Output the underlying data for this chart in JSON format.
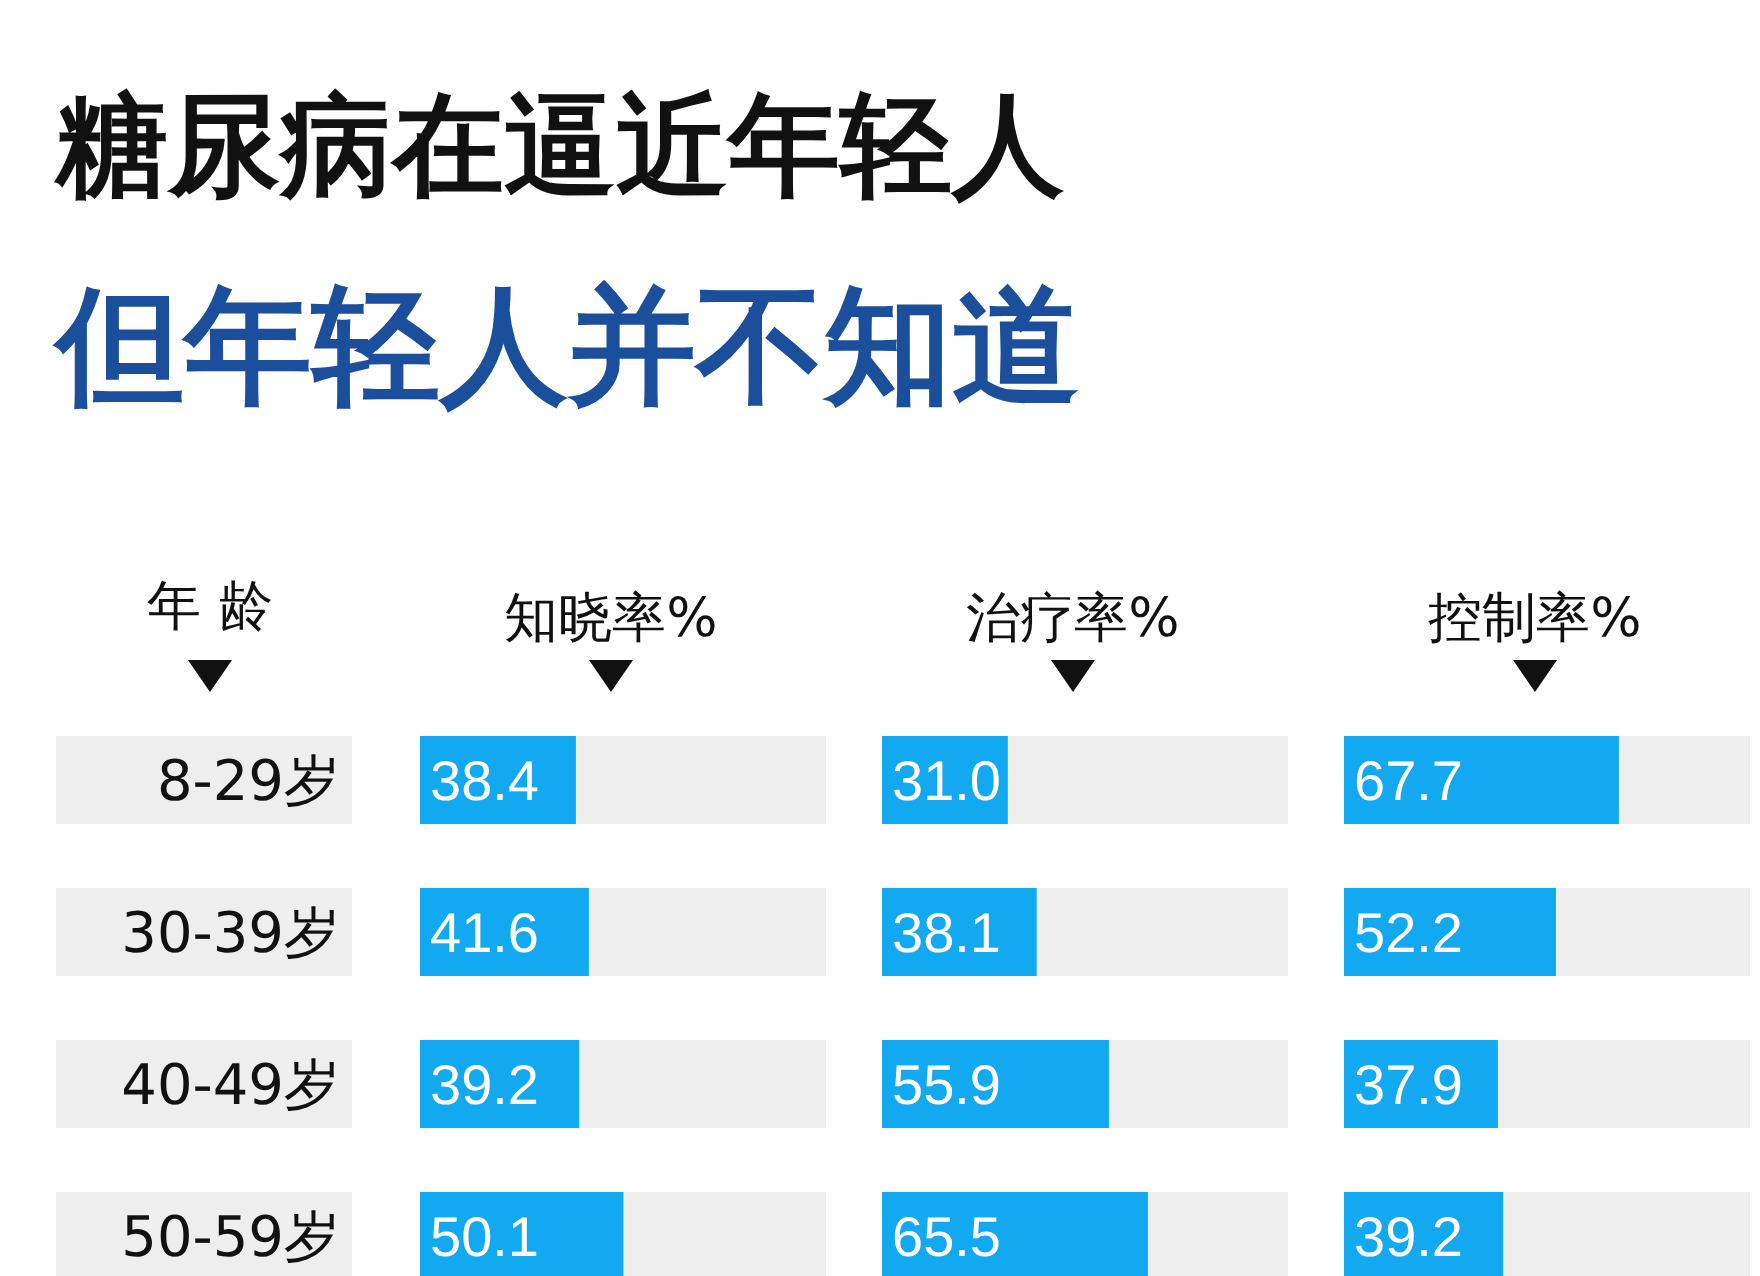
{
  "chart_data": [
    {
      "type": "bar",
      "orientation": "horizontal",
      "title": "糖尿病在逼近年轻人",
      "subtitle": "但年轻人并不知道",
      "ylabel": "年 龄",
      "categories": [
        "8-29岁",
        "30-39岁",
        "40-49岁",
        "50-59岁"
      ],
      "xlim": [
        0,
        100
      ],
      "tick_labels": "y",
      "series": [
        {
          "name": "知晓率%",
          "color": "#13a9f1",
          "values": [
            38.4,
            41.6,
            39.2,
            50.1
          ],
          "value_labels": [
            "38.4",
            "41.6",
            "39.2",
            "50.1"
          ]
        }
      ]
    },
    {
      "type": "bar",
      "orientation": "horizontal",
      "categories": [
        null,
        null,
        null,
        null
      ],
      "xlim": [
        0,
        100
      ],
      "tick_labels": false,
      "series": [
        {
          "name": "治疗率%",
          "color": "#13a9f1",
          "values": [
            31.0,
            38.1,
            55.9,
            65.5
          ],
          "value_labels": [
            "31.0",
            "38.1",
            "55.9",
            "65.5"
          ]
        }
      ]
    },
    {
      "type": "bar",
      "orientation": "horizontal",
      "categories": [
        null,
        null,
        null,
        null
      ],
      "xlim": [
        0,
        100
      ],
      "tick_labels": false,
      "series": [
        {
          "name": "控制率%",
          "color": "#13a9f1",
          "values": [
            67.7,
            52.2,
            37.9,
            39.2
          ],
          "value_labels": [
            "67.7",
            "52.2",
            "37.9",
            "39.2"
          ]
        }
      ]
    }
  ]
}
